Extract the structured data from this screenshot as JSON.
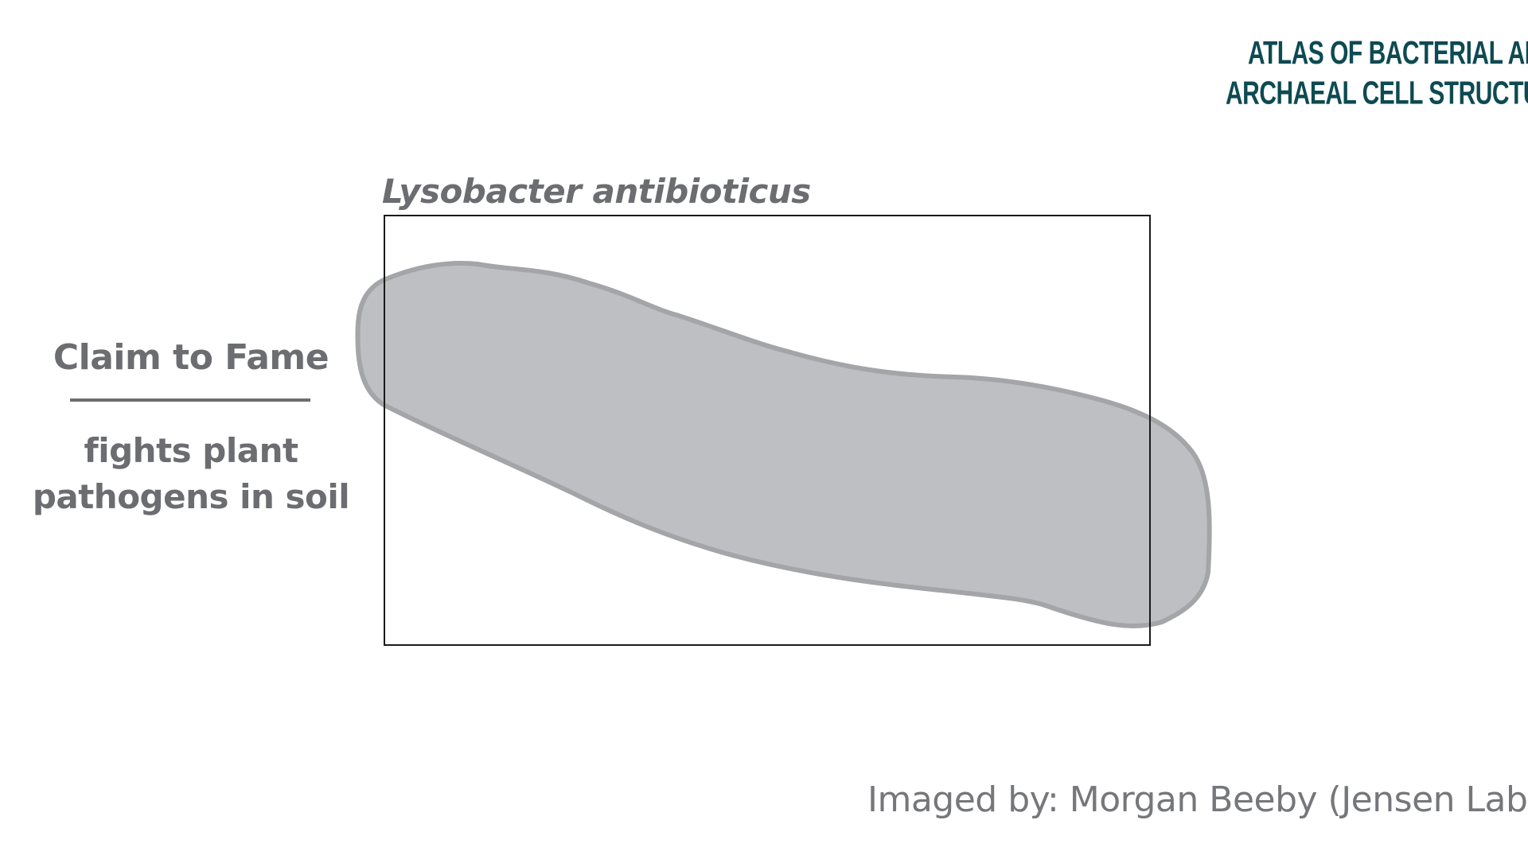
{
  "logo": {
    "line1": "Atlas of Bacterial and",
    "line2": "Archaeal Cell Structure",
    "color": "#0e4a52"
  },
  "species": {
    "name": "Lysobacter antibioticus"
  },
  "claim": {
    "heading": "Claim to Fame",
    "text_line1": "fights plant",
    "text_line2": "pathogens in soil"
  },
  "credit": {
    "text": "Imaged by: Morgan Beeby (Jensen Lab)"
  },
  "colors": {
    "text_gray": "#6c6d70",
    "cell_fill": "#bebfc2",
    "cell_stroke": "#a4a5a8",
    "frame": "#1a1a1a"
  }
}
